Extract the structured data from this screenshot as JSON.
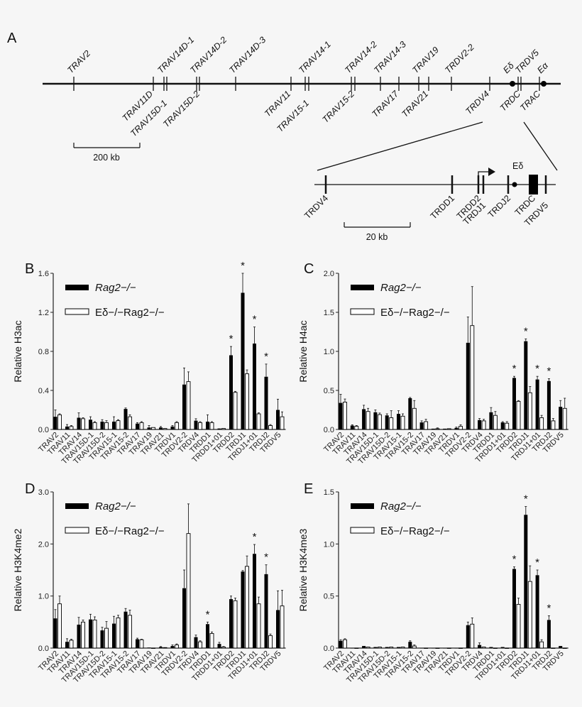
{
  "panel_a": {
    "letter": "A",
    "top_labels": [
      "TRAV2",
      "TRAV14D-1",
      "TRAV14D-2",
      "TRAV14D-3",
      "TRAV14-1",
      "TRAV14-2",
      "TRAV14-3",
      "TRAV19",
      "TRDV2-2",
      "Eδ",
      "TRDV5",
      "Eα"
    ],
    "bottom_labels": [
      "TRAV11D",
      "TRAV15D-1",
      "TRAV15D-2",
      "TRAV11",
      "TRAV15-1",
      "TRAV15-2",
      "TRAV17",
      "TRAV21",
      "TRDV4",
      "TRDC",
      "TRAC"
    ],
    "scale_main": "200 kb",
    "detail_labels": [
      "TRDV4",
      "TRDD1",
      "TRDD2",
      "TRDJ1",
      "TRDJ2",
      "TRDC",
      "TRDV5"
    ],
    "detail_enhancer": "Eδ",
    "scale_detail": "20 kb"
  },
  "legend": {
    "series_1": "Rag2−/−",
    "series_2": "Eδ−/−Rag2−/−"
  },
  "chart_data": [
    {
      "panel": "B",
      "type": "bar",
      "ylabel": "Relative H3ac",
      "ylim": [
        0,
        1.6
      ],
      "yticks": [
        "0.0",
        "0.4",
        "0.8",
        "1.2",
        "1.6"
      ],
      "legend": "top-left",
      "categories": [
        "TRAV2",
        "TRAV11",
        "TRAV14",
        "TRAV15D-1",
        "TRAV15D-2",
        "TRAV15-1",
        "TRAV15-2",
        "TRAV17",
        "TRAV19",
        "TRAV21",
        "TRDV1",
        "TRDV2-2",
        "TRDV4",
        "TRDD1",
        "TRDD1+01",
        "TRDD2",
        "TRDJ1",
        "TRDJ1+01",
        "TRDJ2",
        "TRDV5"
      ],
      "series": [
        {
          "name": "Rag2−/−",
          "color": "#000000",
          "values": [
            0.13,
            0.03,
            0.12,
            0.1,
            0.08,
            0.08,
            0.21,
            0.06,
            0.02,
            0.02,
            0.03,
            0.46,
            0.09,
            0.08,
            0.01,
            0.76,
            1.4,
            0.88,
            0.54,
            0.2
          ],
          "errors": [
            0.07,
            0.02,
            0.05,
            0.03,
            0.02,
            0.05,
            0.01,
            0.01,
            0.02,
            0.01,
            0.01,
            0.17,
            0.02,
            0.07,
            0.0,
            0.09,
            0.2,
            0.17,
            0.13,
            0.11
          ]
        },
        {
          "name": "Eδ−/−Rag2−/−",
          "color": "#ffffff",
          "values": [
            0.15,
            0.03,
            0.11,
            0.07,
            0.07,
            0.09,
            0.13,
            0.07,
            0.02,
            0.01,
            0.07,
            0.49,
            0.07,
            0.07,
            0.01,
            0.38,
            0.57,
            0.16,
            0.04,
            0.13
          ],
          "errors": [
            0.01,
            0.01,
            0.01,
            0.01,
            0.02,
            0.01,
            0.02,
            0.01,
            0.0,
            0.0,
            0.01,
            0.1,
            0.01,
            0.01,
            0.0,
            0.01,
            0.04,
            0.01,
            0.01,
            0.05
          ]
        }
      ],
      "significant": [
        "TRDD2",
        "TRDJ1",
        "TRDJ1+01",
        "TRDJ2"
      ]
    },
    {
      "panel": "C",
      "type": "bar",
      "ylabel": "Relative H4ac",
      "ylim": [
        0,
        2.0
      ],
      "yticks": [
        "0.0",
        "0.5",
        "1.0",
        "1.5",
        "2.0"
      ],
      "legend": "top-left",
      "categories": [
        "TRAV2",
        "TRAV11",
        "TRAV14",
        "TRAV15D-1",
        "TRAV15D-2",
        "TRAV15-1",
        "TRAV15-2",
        "TRAV17",
        "TRAV19",
        "TRAV21",
        "TRDV1",
        "TRDV2-2",
        "TRDV4",
        "TRDD1",
        "TRDD1+01",
        "TRDD2",
        "TRDJ1",
        "TRDJ1+01",
        "TRDJ2",
        "TRDV5"
      ],
      "series": [
        {
          "name": "Rag2−/−",
          "color": "#000000",
          "values": [
            0.34,
            0.05,
            0.26,
            0.22,
            0.18,
            0.2,
            0.4,
            0.09,
            0.01,
            0.01,
            0.02,
            1.11,
            0.12,
            0.22,
            0.09,
            0.66,
            1.13,
            0.64,
            0.62,
            0.29
          ],
          "errors": [
            0.11,
            0.01,
            0.05,
            0.03,
            0.02,
            0.04,
            0.01,
            0.02,
            0.0,
            0.0,
            0.01,
            0.33,
            0.02,
            0.06,
            0.01,
            0.02,
            0.03,
            0.04,
            0.03,
            0.08
          ]
        },
        {
          "name": "Eδ−/−Rag2−/−",
          "color": "#ffffff",
          "values": [
            0.35,
            0.04,
            0.23,
            0.19,
            0.15,
            0.17,
            0.27,
            0.1,
            0.01,
            0.01,
            0.04,
            1.33,
            0.11,
            0.18,
            0.08,
            0.36,
            0.47,
            0.15,
            0.11,
            0.27
          ],
          "errors": [
            0.04,
            0.01,
            0.04,
            0.02,
            0.09,
            0.03,
            0.1,
            0.03,
            0.01,
            0.0,
            0.02,
            0.5,
            0.02,
            0.05,
            0.02,
            0.01,
            0.08,
            0.03,
            0.03,
            0.13
          ]
        }
      ],
      "significant": [
        "TRDD2",
        "TRDJ1",
        "TRDJ1+01",
        "TRDJ2"
      ]
    },
    {
      "panel": "D",
      "type": "bar",
      "ylabel": "Relative H3K4me2",
      "ylim": [
        0,
        3.0
      ],
      "yticks": [
        "0.0",
        "1.0",
        "2.0",
        "3.0"
      ],
      "legend": "top-left",
      "categories": [
        "TRAV2",
        "TRAV11",
        "TRAV14",
        "TRAV15D-1",
        "TRAV15D-2",
        "TRAV15-1",
        "TRAV15-2",
        "TRAV17",
        "TRAV19",
        "TRAV21",
        "TRDV1",
        "TRDV2-2",
        "TRDV4",
        "TRDD1",
        "TRDD1+01",
        "TRDD2",
        "TRDJ1",
        "TRDJ1+01",
        "TRDJ2",
        "TRDV5"
      ],
      "series": [
        {
          "name": "Rag2−/−",
          "color": "#000000",
          "values": [
            0.57,
            0.12,
            0.45,
            0.55,
            0.34,
            0.47,
            0.7,
            0.17,
            0.01,
            0.02,
            0.04,
            1.15,
            0.21,
            0.46,
            0.08,
            0.94,
            1.47,
            1.81,
            1.42,
            0.73
          ],
          "errors": [
            0.17,
            0.06,
            0.14,
            0.1,
            0.06,
            0.14,
            0.06,
            0.02,
            0.0,
            0.01,
            0.02,
            0.35,
            0.04,
            0.04,
            0.03,
            0.06,
            0.02,
            0.18,
            0.18,
            0.37
          ]
        },
        {
          "name": "Eδ−/−Rag2−/−",
          "color": "#ffffff",
          "values": [
            0.85,
            0.15,
            0.5,
            0.54,
            0.38,
            0.58,
            0.63,
            0.16,
            0.0,
            0.01,
            0.06,
            2.2,
            0.12,
            0.28,
            0.02,
            0.91,
            1.57,
            0.85,
            0.24,
            0.81
          ],
          "errors": [
            0.15,
            0.02,
            0.04,
            0.06,
            0.13,
            0.05,
            0.1,
            0.01,
            0.0,
            0.0,
            0.02,
            0.57,
            0.02,
            0.03,
            0.01,
            0.05,
            0.2,
            0.13,
            0.03,
            0.3
          ]
        }
      ],
      "significant": [
        "TRDD1",
        "TRDJ1+01",
        "TRDJ2"
      ]
    },
    {
      "panel": "E",
      "type": "bar",
      "ylabel": "Relative H3K4me3",
      "ylim": [
        0,
        1.5
      ],
      "yticks": [
        "0.0",
        "0.5",
        "1.0",
        "1.5"
      ],
      "legend": "top-left",
      "categories": [
        "TRAV2",
        "TRAV11",
        "TRAV14",
        "TRAV15D-1",
        "TRAV15D-2",
        "TRAV15-1",
        "TRAV15-2",
        "TRAV17",
        "TRAV19",
        "TRAV21",
        "TRDV1",
        "TRDV2-2",
        "TRDV4",
        "TRDD1",
        "TRDD1+01",
        "TRDD2",
        "TRDJ1",
        "TRDJ1+01",
        "TRDJ2",
        "TRDV5"
      ],
      "series": [
        {
          "name": "Rag2−/−",
          "color": "#000000",
          "values": [
            0.07,
            0.0,
            0.02,
            0.01,
            0.01,
            0.01,
            0.06,
            0.0,
            0.0,
            0.0,
            0.0,
            0.22,
            0.03,
            0.01,
            0.01,
            0.76,
            1.28,
            0.7,
            0.27,
            0.02
          ],
          "errors": [
            0.01,
            0.0,
            0.0,
            0.0,
            0.0,
            0.0,
            0.01,
            0.0,
            0.0,
            0.0,
            0.0,
            0.03,
            0.02,
            0.0,
            0.0,
            0.02,
            0.08,
            0.05,
            0.04,
            0.0
          ]
        },
        {
          "name": "Eδ−/−Rag2−/−",
          "color": "#ffffff",
          "values": [
            0.08,
            0.0,
            0.01,
            0.01,
            0.01,
            0.01,
            0.02,
            0.0,
            0.0,
            0.0,
            0.0,
            0.23,
            0.01,
            0.0,
            0.0,
            0.42,
            0.64,
            0.06,
            0.0,
            0.0
          ],
          "errors": [
            0.01,
            0.0,
            0.0,
            0.0,
            0.0,
            0.0,
            0.01,
            0.0,
            0.0,
            0.0,
            0.0,
            0.06,
            0.0,
            0.0,
            0.0,
            0.06,
            0.15,
            0.02,
            0.0,
            0.0
          ]
        }
      ],
      "significant": [
        "TRDD2",
        "TRDJ1",
        "TRDJ1+01",
        "TRDJ2"
      ]
    }
  ]
}
